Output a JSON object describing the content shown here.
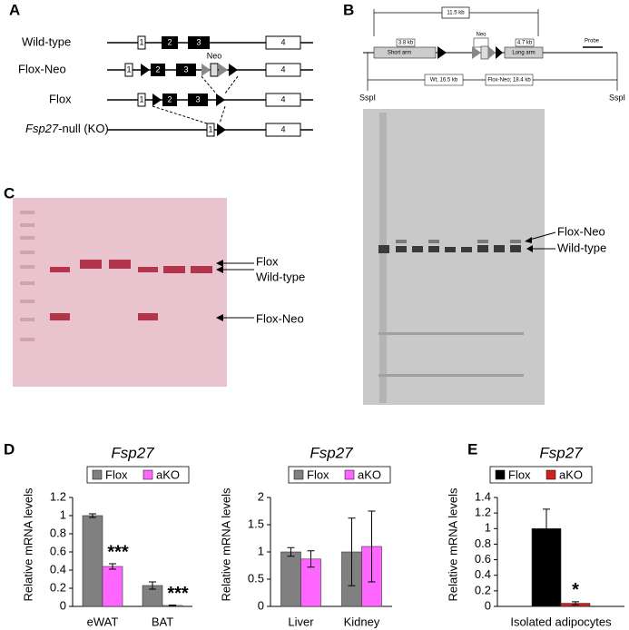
{
  "panel_labels": [
    "A",
    "B",
    "C",
    "D",
    "E"
  ],
  "panel_a": {
    "rows": [
      {
        "label": "Wild-type"
      },
      {
        "label": "Flox-Neo"
      },
      {
        "label": "Flox"
      },
      {
        "label_italic": "Fsp27",
        "label_rest": "-null (KO)"
      }
    ],
    "exons": [
      "1",
      "2",
      "3",
      "4"
    ],
    "neo": "Neo"
  },
  "panel_b": {
    "span": "11.5 kb",
    "short_arm_size": "3.8 kb",
    "short_arm": "Short arm",
    "neo": "Neo",
    "long_arm_size": "4.7 kb",
    "long_arm": "Long arm",
    "probe": "Probe",
    "wt_fragment": "Wt; 16.5 kb",
    "floxneo_fragment": "Flox-Neo; 18.4 kb",
    "site_left": "SspI",
    "site_right": "SspI",
    "band_labels": [
      "Flox-Neo",
      "Wild-type"
    ]
  },
  "panel_c": {
    "band_labels": [
      "Flox",
      "Wild-type",
      "Flox-Neo"
    ]
  },
  "chart_data": [
    {
      "type": "bar",
      "title": "Fsp27",
      "y_label": "Relative mRNA levels",
      "categories": [
        "eWAT",
        "BAT"
      ],
      "series": [
        {
          "name": "Flox",
          "color": "#808080",
          "values": [
            1.0,
            0.23
          ],
          "errors": [
            0.02,
            0.04
          ]
        },
        {
          "name": "aKO",
          "color": "#ff66ff",
          "values": [
            0.44,
            0.01
          ],
          "errors": [
            0.03,
            0.005
          ],
          "annotations": [
            "***",
            "***"
          ]
        }
      ],
      "ylim": [
        0,
        1.2
      ],
      "yticks": [
        0,
        0.2,
        0.4,
        0.6,
        0.8,
        1,
        1.2
      ]
    },
    {
      "type": "bar",
      "title": "Fsp27",
      "y_label": "Relative mRNA levels",
      "categories": [
        "Liver",
        "Kidney"
      ],
      "series": [
        {
          "name": "Flox",
          "color": "#808080",
          "values": [
            1.0,
            1.0
          ],
          "errors": [
            0.08,
            0.62
          ]
        },
        {
          "name": "aKO",
          "color": "#ff66ff",
          "values": [
            0.87,
            1.1
          ],
          "errors": [
            0.15,
            0.65
          ]
        }
      ],
      "ylim": [
        0,
        2
      ],
      "yticks": [
        0,
        0.5,
        1,
        1.5,
        2
      ]
    },
    {
      "type": "bar",
      "title": "Fsp27",
      "y_label": "Relative mRNA levels",
      "categories": [
        "Isolated adipocytes"
      ],
      "series": [
        {
          "name": "Flox",
          "color": "#000000",
          "values": [
            1.0
          ],
          "errors": [
            0.25
          ]
        },
        {
          "name": "aKO",
          "color": "#cc2222",
          "values": [
            0.04
          ],
          "errors": [
            0.02
          ],
          "annotations": [
            "*"
          ]
        }
      ],
      "ylim": [
        0,
        1.4
      ],
      "yticks": [
        0,
        0.2,
        0.4,
        0.6,
        0.8,
        1,
        1.2,
        1.4
      ]
    }
  ]
}
